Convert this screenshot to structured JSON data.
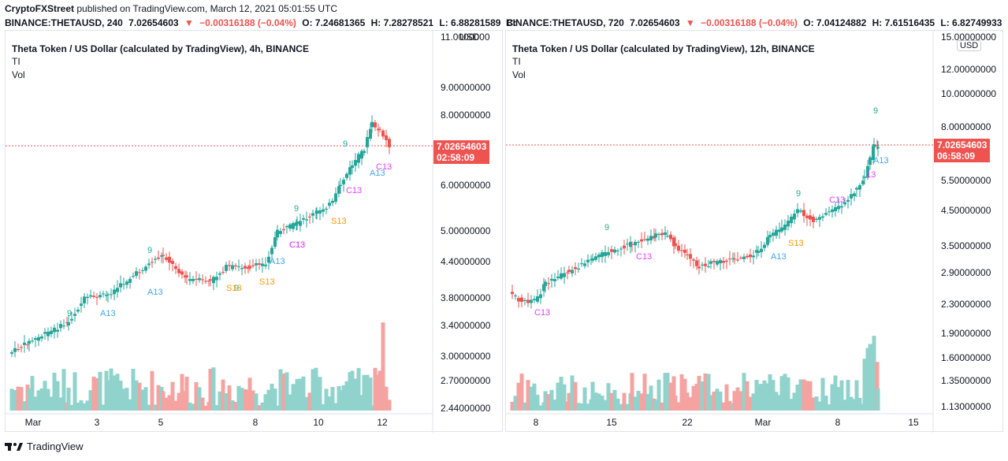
{
  "header": {
    "published_by": "CryptoFXStreet",
    "published_rest": " published on TradingView.com, March 12, 2021 05:01:55 UTC"
  },
  "left": {
    "symbol": "BINANCE:THETAUSD, 240",
    "last": "7.02654603",
    "change": "−0.00316188 (−0.04%)",
    "o": "O: 7.24681365",
    "h": "H: 7.28278521",
    "l": "L: 6.88281589",
    "c": "C:",
    "title": "Theta Token / US Dollar (calculated by TradingView), 4h, BINANCE",
    "ind1": "TI",
    "ind2": "Vol",
    "price_tag": "7.02654603",
    "countdown": "02:58:09",
    "currency": "USD",
    "top_price_label": "11.0000000",
    "y_labels": [
      "9.00000000",
      "8.00000000",
      "6.00000000",
      "5.00000000",
      "4.40000000",
      "3.80000000",
      "3.40000000",
      "3.00000000",
      "2.70000000",
      "2.44000000"
    ],
    "x_labels": [
      "Mar",
      "3",
      "5",
      "8",
      "10",
      "12"
    ],
    "annotations": [
      "9",
      "A13",
      "9",
      "A13",
      "9",
      "S13",
      "C13",
      "S13",
      "A13",
      "9",
      "C13",
      "S13",
      "9",
      "C13",
      "A13",
      "C13"
    ]
  },
  "right": {
    "symbol": "BINANCE:THETAUSD, 720",
    "last": "7.02654603",
    "change": "−0.00316188 (−0.04%)",
    "o": "O: 7.04124882",
    "h": "H: 7.61516435",
    "l": "L: 6.82749933",
    "c": "C:",
    "title": "Theta Token / US Dollar (calculated by TradingView), 12h, BINANCE",
    "ind1": "TI",
    "ind2": "Vol",
    "price_tag": "7.02654603",
    "countdown": "06:58:09",
    "currency": "USD",
    "y_labels": [
      "15.00000000",
      "12.00000000",
      "10.00000000",
      "8.00000000",
      "5.50000000",
      "4.50000000",
      "3.50000000",
      "2.90000000",
      "2.30000000",
      "1.90000000",
      "1.60000000",
      "1.35000000",
      "1.13000000"
    ],
    "x_labels": [
      "8",
      "15",
      "22",
      "Mar",
      "8",
      "15"
    ],
    "annotations": [
      "C13",
      "9",
      "C13",
      "9",
      "S13",
      "A13",
      "C13",
      "13",
      "A13",
      "9"
    ]
  },
  "footer": {
    "brand": "TradingView"
  },
  "colors": {
    "up": "#26a69a",
    "down": "#ef5350",
    "vol_up": "#8fd3cc",
    "vol_down": "#f4a3a1"
  }
}
